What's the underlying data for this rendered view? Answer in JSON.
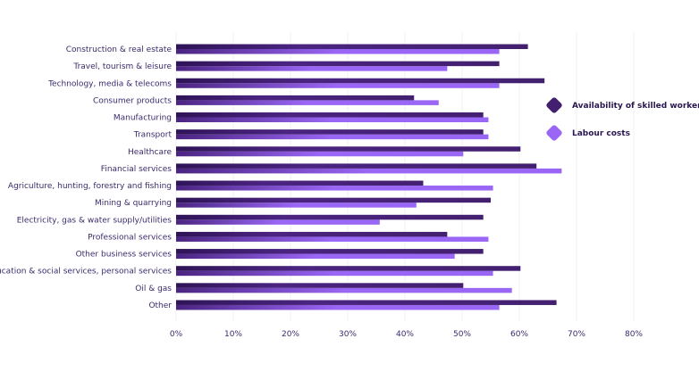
{
  "chart_data": {
    "type": "bar",
    "orientation": "horizontal",
    "categories": [
      "Construction & real estate",
      "Travel, tourism & leisure",
      "Technology, media & telecoms",
      "Consumer products",
      "Manufacturing",
      "Transport",
      "Healthcare",
      "Financial services",
      "Agriculture, hunting, forestry and fishing",
      "Mining & quarrying",
      "Electricity, gas & water supply/utilities",
      "Professional services",
      "Other business services",
      "Education & social services, personal services",
      "Oil & gas",
      "Other"
    ],
    "series": [
      {
        "name": "Availability of skilled workers",
        "color": "#43206f",
        "values": [
          61.5,
          56.5,
          64.4,
          41.6,
          53.7,
          53.7,
          60.2,
          63.0,
          43.2,
          55.0,
          53.7,
          47.4,
          53.7,
          60.2,
          50.2,
          66.5
        ]
      },
      {
        "name": "Labour costs",
        "color": "#9a66f5",
        "values": [
          56.5,
          47.4,
          56.5,
          45.9,
          54.6,
          54.6,
          50.2,
          67.4,
          55.4,
          42.0,
          35.6,
          54.6,
          48.7,
          55.4,
          58.7,
          56.5
        ]
      }
    ],
    "xlim": [
      0,
      80
    ],
    "xticks": [
      "0%",
      "10%",
      "20%",
      "30%",
      "40%",
      "50%",
      "60%",
      "70%",
      "80%"
    ],
    "grid": true,
    "legend_position": "right"
  }
}
